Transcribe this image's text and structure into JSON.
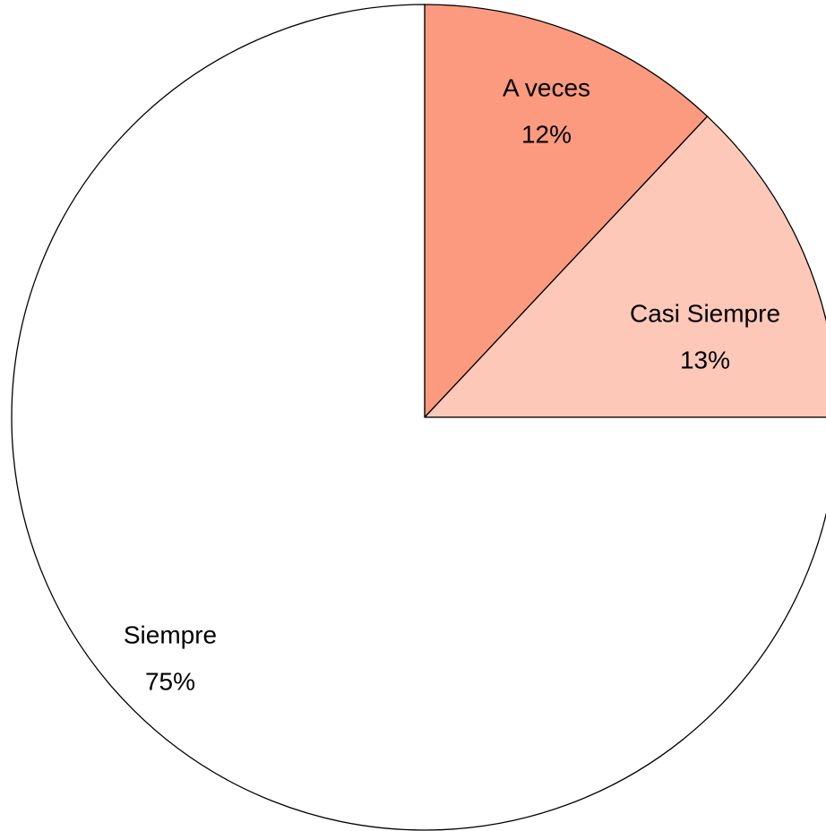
{
  "chart_data": {
    "type": "pie",
    "categories": [
      "A veces",
      "Casi Siempre",
      "Siempre"
    ],
    "values": [
      12,
      13,
      75
    ],
    "value_labels": [
      "12%",
      "13%",
      "75%"
    ],
    "colors": [
      "#fc9a80",
      "#fdc8b8",
      "#ffffff"
    ]
  }
}
